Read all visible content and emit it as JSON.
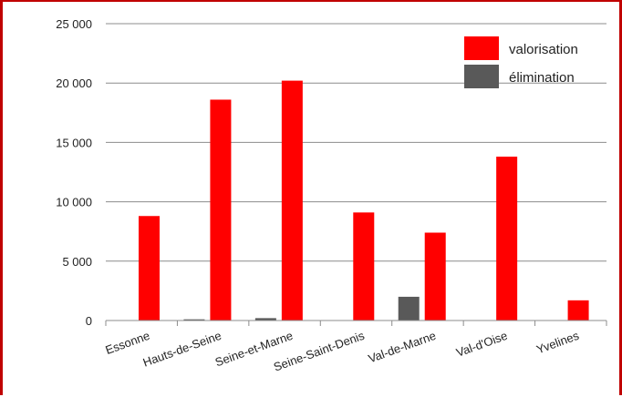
{
  "chart_data": {
    "type": "bar",
    "categories": [
      "Essonne",
      "Hauts-de-Seine",
      "Seine-et-Marne",
      "Seine-Saint-Denis",
      "Val-de-Marne",
      "Val-d'Oise",
      "Yvelines"
    ],
    "series": [
      {
        "name": "élimination",
        "color": "#595959",
        "values": [
          0,
          100,
          200,
          0,
          2000,
          0,
          0
        ]
      },
      {
        "name": "valorisation",
        "color": "#ff0000",
        "values": [
          8800,
          18600,
          20200,
          9100,
          7400,
          13800,
          1700
        ]
      }
    ],
    "ylim": [
      0,
      25000
    ],
    "yticks": [
      0,
      5000,
      10000,
      15000,
      20000,
      25000
    ],
    "ytick_labels": [
      "0",
      "5 000",
      "10 000",
      "15 000",
      "20 000",
      "25 000"
    ],
    "grid": true,
    "legend": {
      "position": "top-right",
      "entries": [
        "valorisation",
        "élimination"
      ]
    },
    "title": "",
    "xlabel": "",
    "ylabel": ""
  }
}
